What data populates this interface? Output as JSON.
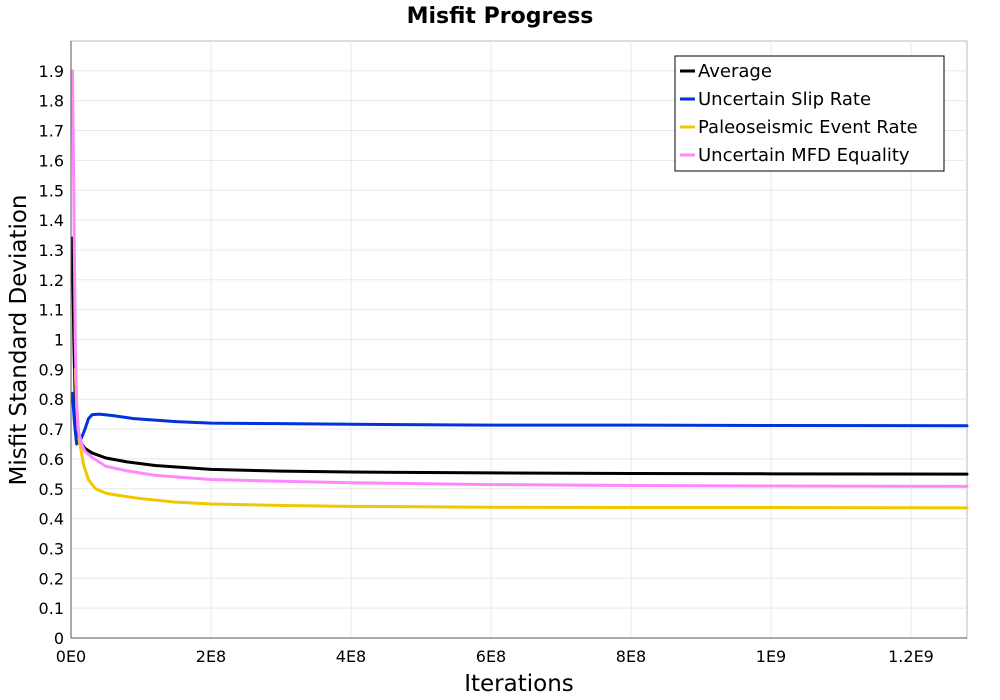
{
  "chart_data": {
    "type": "line",
    "title": "Misfit Progress",
    "xlabel": "Iterations",
    "ylabel": "Misfit Standard Deviation",
    "xlim": [
      0,
      1280000000
    ],
    "ylim": [
      0,
      2.0
    ],
    "grid": true,
    "legend_position": "top-right",
    "x_ticks": [
      {
        "value": 0,
        "label": "0E0"
      },
      {
        "value": 200000000,
        "label": "2E8"
      },
      {
        "value": 400000000,
        "label": "4E8"
      },
      {
        "value": 600000000,
        "label": "6E8"
      },
      {
        "value": 800000000,
        "label": "8E8"
      },
      {
        "value": 1000000000,
        "label": "1E9"
      },
      {
        "value": 1200000000,
        "label": "1.2E9"
      }
    ],
    "y_ticks": [
      {
        "value": 0,
        "label": "0"
      },
      {
        "value": 0.1,
        "label": "0.1"
      },
      {
        "value": 0.2,
        "label": "0.2"
      },
      {
        "value": 0.3,
        "label": "0.3"
      },
      {
        "value": 0.4,
        "label": "0.4"
      },
      {
        "value": 0.5,
        "label": "0.5"
      },
      {
        "value": 0.6,
        "label": "0.6"
      },
      {
        "value": 0.7,
        "label": "0.7"
      },
      {
        "value": 0.8,
        "label": "0.8"
      },
      {
        "value": 0.9,
        "label": "0.9"
      },
      {
        "value": 1.0,
        "label": "1"
      },
      {
        "value": 1.1,
        "label": "1.1"
      },
      {
        "value": 1.2,
        "label": "1.2"
      },
      {
        "value": 1.3,
        "label": "1.3"
      },
      {
        "value": 1.4,
        "label": "1.4"
      },
      {
        "value": 1.5,
        "label": "1.5"
      },
      {
        "value": 1.6,
        "label": "1.6"
      },
      {
        "value": 1.7,
        "label": "1.7"
      },
      {
        "value": 1.8,
        "label": "1.8"
      },
      {
        "value": 1.9,
        "label": "1.9"
      }
    ],
    "series": [
      {
        "name": "Average",
        "color": "#000000",
        "points": [
          [
            2000000,
            1.34
          ],
          [
            4000000,
            1.0
          ],
          [
            6000000,
            0.8
          ],
          [
            8000000,
            0.72
          ],
          [
            10000000,
            0.68
          ],
          [
            15000000,
            0.65
          ],
          [
            20000000,
            0.635
          ],
          [
            30000000,
            0.62
          ],
          [
            50000000,
            0.603
          ],
          [
            80000000,
            0.59
          ],
          [
            120000000,
            0.578
          ],
          [
            200000000,
            0.565
          ],
          [
            300000000,
            0.559
          ],
          [
            400000000,
            0.556
          ],
          [
            600000000,
            0.553
          ],
          [
            800000000,
            0.551
          ],
          [
            1000000000,
            0.55
          ],
          [
            1280000000,
            0.549
          ]
        ]
      },
      {
        "name": "Uncertain Slip Rate",
        "color": "#0033dd",
        "points": [
          [
            2000000,
            0.82
          ],
          [
            5000000,
            0.72
          ],
          [
            8000000,
            0.65
          ],
          [
            15000000,
            0.67
          ],
          [
            20000000,
            0.7
          ],
          [
            25000000,
            0.735
          ],
          [
            30000000,
            0.748
          ],
          [
            40000000,
            0.75
          ],
          [
            60000000,
            0.745
          ],
          [
            90000000,
            0.735
          ],
          [
            150000000,
            0.725
          ],
          [
            200000000,
            0.72
          ],
          [
            300000000,
            0.718
          ],
          [
            400000000,
            0.716
          ],
          [
            600000000,
            0.713
          ],
          [
            800000000,
            0.713
          ],
          [
            1000000000,
            0.712
          ],
          [
            1280000000,
            0.711
          ]
        ]
      },
      {
        "name": "Paleoseismic Event Rate",
        "color": "#f0c800",
        "points": [
          [
            6000000,
            0.9
          ],
          [
            8000000,
            0.78
          ],
          [
            12000000,
            0.66
          ],
          [
            18000000,
            0.58
          ],
          [
            25000000,
            0.53
          ],
          [
            35000000,
            0.5
          ],
          [
            50000000,
            0.485
          ],
          [
            70000000,
            0.477
          ],
          [
            100000000,
            0.467
          ],
          [
            150000000,
            0.455
          ],
          [
            200000000,
            0.449
          ],
          [
            300000000,
            0.444
          ],
          [
            400000000,
            0.441
          ],
          [
            600000000,
            0.438
          ],
          [
            800000000,
            0.437
          ],
          [
            1000000000,
            0.437
          ],
          [
            1280000000,
            0.436
          ]
        ]
      },
      {
        "name": "Uncertain MFD Equality",
        "color": "#ff88ff",
        "points": [
          [
            2000000,
            1.9
          ],
          [
            4000000,
            1.5
          ],
          [
            6000000,
            1.0
          ],
          [
            8000000,
            0.78
          ],
          [
            10000000,
            0.7
          ],
          [
            15000000,
            0.65
          ],
          [
            20000000,
            0.625
          ],
          [
            30000000,
            0.605
          ],
          [
            50000000,
            0.575
          ],
          [
            80000000,
            0.56
          ],
          [
            120000000,
            0.545
          ],
          [
            200000000,
            0.531
          ],
          [
            300000000,
            0.525
          ],
          [
            400000000,
            0.52
          ],
          [
            600000000,
            0.514
          ],
          [
            800000000,
            0.511
          ],
          [
            1000000000,
            0.509
          ],
          [
            1280000000,
            0.508
          ]
        ]
      }
    ]
  }
}
